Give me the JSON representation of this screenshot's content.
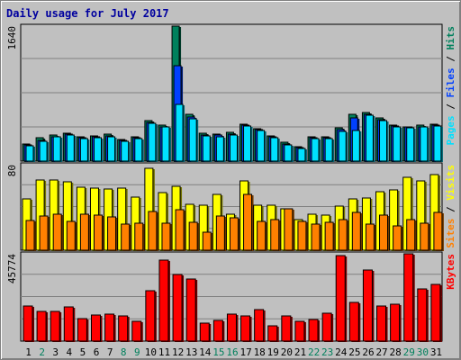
{
  "title": "Daily usage for July 2017",
  "colors": {
    "hits": "#00805c",
    "files": "#0040ff",
    "pages": "#00e0ff",
    "visits": "#ffff00",
    "sites": "#ff8000",
    "kbytes": "#ff0000",
    "weekend_label": "#00805c",
    "weekday_label": "#000000",
    "legend_separator": "#000000"
  },
  "chart_data": [
    {
      "type": "bar",
      "panel": "hits",
      "categories": [
        "1",
        "2",
        "3",
        "4",
        "5",
        "6",
        "7",
        "8",
        "9",
        "10",
        "11",
        "12",
        "13",
        "14",
        "15",
        "16",
        "17",
        "18",
        "19",
        "20",
        "21",
        "22",
        "23",
        "24",
        "25",
        "26",
        "27",
        "28",
        "29",
        "30",
        "31"
      ],
      "max_label": "1640",
      "ylim": [
        0,
        1640
      ],
      "grid": true,
      "legend": [
        {
          "label": "Hits",
          "color_key": "hits"
        },
        {
          "label": "Files",
          "color_key": "files"
        },
        {
          "label": "Pages",
          "color_key": "pages"
        }
      ],
      "legend_separator": " / ",
      "series": [
        {
          "name": "Hits",
          "color_key": "hits",
          "values": [
            210,
            280,
            320,
            340,
            300,
            310,
            330,
            260,
            300,
            490,
            440,
            1640,
            570,
            340,
            330,
            350,
            450,
            390,
            310,
            230,
            170,
            300,
            290,
            400,
            570,
            590,
            520,
            440,
            420,
            440,
            450
          ]
        },
        {
          "name": "Files",
          "color_key": "files",
          "values": [
            200,
            250,
            300,
            330,
            280,
            290,
            310,
            250,
            280,
            470,
            420,
            1160,
            540,
            320,
            320,
            330,
            440,
            380,
            290,
            210,
            160,
            280,
            280,
            380,
            520,
            570,
            500,
            430,
            410,
            420,
            440
          ]
        },
        {
          "name": "Pages",
          "color_key": "pages",
          "values": [
            190,
            240,
            290,
            320,
            270,
            280,
            300,
            240,
            270,
            460,
            410,
            690,
            510,
            310,
            300,
            320,
            430,
            370,
            280,
            200,
            150,
            270,
            270,
            360,
            370,
            560,
            490,
            420,
            400,
            410,
            430
          ]
        }
      ],
      "weekend_days": [
        "2",
        "8",
        "9",
        "15",
        "16",
        "22",
        "23",
        "29",
        "30"
      ]
    },
    {
      "type": "bar",
      "panel": "visits",
      "categories": [
        "1",
        "2",
        "3",
        "4",
        "5",
        "6",
        "7",
        "8",
        "9",
        "10",
        "11",
        "12",
        "13",
        "14",
        "15",
        "16",
        "17",
        "18",
        "19",
        "20",
        "21",
        "22",
        "23",
        "24",
        "25",
        "26",
        "27",
        "28",
        "29",
        "30",
        "31"
      ],
      "max_label": "80",
      "ylim": [
        0,
        80
      ],
      "grid": true,
      "legend": [
        {
          "label": "Visits",
          "color_key": "visits"
        },
        {
          "label": "Sites",
          "color_key": "sites"
        }
      ],
      "legend_separator": " / ",
      "series": [
        {
          "name": "Visits",
          "color_key": "visits",
          "values": [
            48,
            66,
            66,
            64,
            59,
            58,
            57,
            58,
            50,
            77,
            54,
            60,
            43,
            42,
            52,
            34,
            65,
            42,
            42,
            39,
            29,
            34,
            33,
            41,
            48,
            49,
            55,
            56,
            68,
            65,
            71
          ]
        },
        {
          "name": "Sites",
          "color_key": "sites",
          "values": [
            28,
            32,
            34,
            27,
            34,
            33,
            31,
            24,
            25,
            36,
            25,
            38,
            26,
            17,
            32,
            30,
            52,
            27,
            29,
            39,
            27,
            24,
            26,
            29,
            35,
            24,
            33,
            23,
            29,
            25,
            35
          ]
        }
      ]
    },
    {
      "type": "bar",
      "panel": "kbytes",
      "categories": [
        "1",
        "2",
        "3",
        "4",
        "5",
        "6",
        "7",
        "8",
        "9",
        "10",
        "11",
        "12",
        "13",
        "14",
        "15",
        "16",
        "17",
        "18",
        "19",
        "20",
        "21",
        "22",
        "23",
        "24",
        "25",
        "26",
        "27",
        "28",
        "29",
        "30",
        "31"
      ],
      "max_label": "45774",
      "ylim": [
        0,
        45774
      ],
      "grid": true,
      "legend": [
        {
          "label": "KBytes",
          "color_key": "kbytes"
        }
      ],
      "series": [
        {
          "name": "KBytes",
          "color_key": "kbytes",
          "values": [
            18200,
            15500,
            15800,
            17900,
            11600,
            13800,
            14000,
            13000,
            10500,
            26200,
            42700,
            34800,
            32400,
            9300,
            10800,
            14000,
            13200,
            16300,
            7800,
            13200,
            10300,
            11300,
            14500,
            45000,
            20200,
            37400,
            18600,
            19200,
            45774,
            27200,
            29800
          ]
        }
      ]
    }
  ]
}
